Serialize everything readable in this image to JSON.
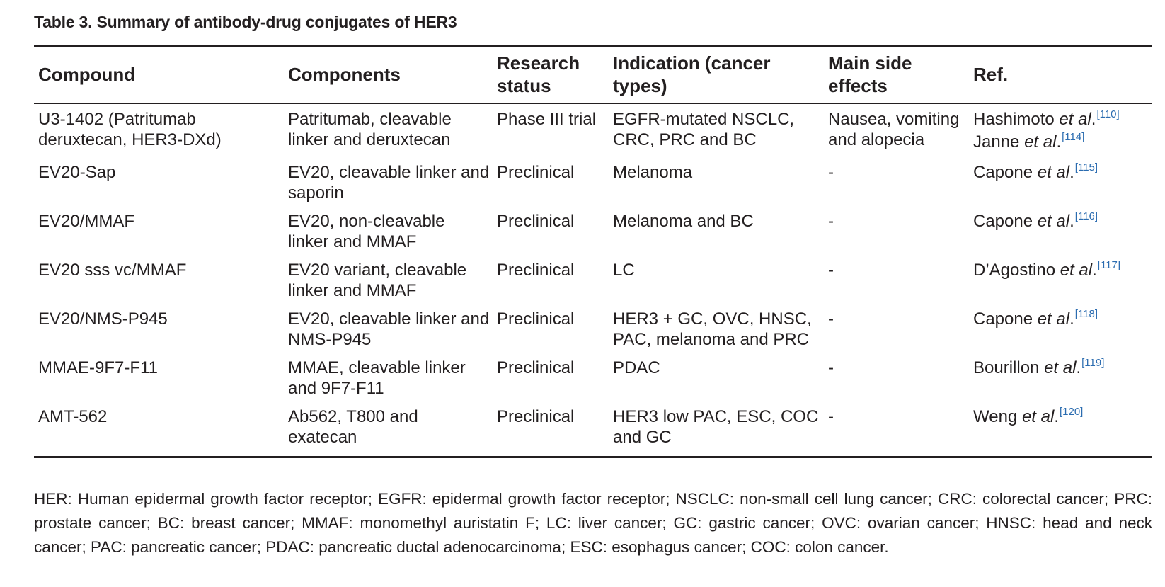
{
  "table_title": "Table 3. Summary of antibody-drug conjugates of HER3",
  "headers": {
    "compound": "Compound",
    "components": "Components",
    "research_status": "Research status",
    "indication": "Indication (cancer types)",
    "side_effects": "Main side effects",
    "ref": "Ref."
  },
  "rows": [
    {
      "compound": "U3-1402 (Patritumab deruxtecan, HER3-DXd)",
      "components": "Patritumab, cleavable linker and deruxtecan",
      "status": "Phase III trial",
      "indication": "EGFR-mutated NSCLC, CRC, PRC and BC",
      "side_effects": "Nausea, vomiting and alopecia",
      "refs": [
        {
          "author": "Hashimoto",
          "etal": "et al",
          "dot": ".",
          "cite": "[110]"
        },
        {
          "author": "Janne",
          "etal": "et al",
          "dot": ".",
          "cite": "[114]"
        }
      ]
    },
    {
      "compound": "EV20-Sap",
      "components": "EV20, cleavable linker and saporin",
      "status": "Preclinical",
      "indication": "Melanoma",
      "side_effects": "-",
      "refs": [
        {
          "author": "Capone",
          "etal": "et al",
          "dot": ".",
          "cite": "[115]"
        }
      ]
    },
    {
      "compound": "EV20/MMAF",
      "components": "EV20, non-cleavable linker and MMAF",
      "status": "Preclinical",
      "indication": "Melanoma and BC",
      "side_effects": "-",
      "refs": [
        {
          "author": "Capone",
          "etal": "et al",
          "dot": ".",
          "cite": "[116]"
        }
      ]
    },
    {
      "compound": "EV20  sss  vc/MMAF",
      "components": "EV20 variant, cleavable linker and MMAF",
      "status": "Preclinical",
      "indication": "LC",
      "side_effects": "-",
      "refs": [
        {
          "author": "D’Agostino",
          "etal": "et al",
          "dot": ".",
          "cite": "[117]"
        }
      ]
    },
    {
      "compound": "EV20/NMS-P945",
      "components": "EV20, cleavable linker and NMS-P945",
      "status": "Preclinical",
      "indication": "HER3 + GC, OVC, HNSC, PAC, melanoma and PRC",
      "side_effects": "-",
      "refs": [
        {
          "author": "Capone",
          "etal": "et al",
          "dot": ".",
          "cite": "[118]"
        }
      ]
    },
    {
      "compound": "MMAE-9F7-F11",
      "components": "MMAE, cleavable linker and 9F7-F11",
      "status": "Preclinical",
      "indication": "PDAC",
      "side_effects": "-",
      "refs": [
        {
          "author": "Bourillon",
          "etal": "et al",
          "dot": ".",
          "cite": "[119]"
        }
      ]
    },
    {
      "compound": "AMT-562",
      "components": "Ab562, T800 and exatecan",
      "status": "Preclinical",
      "indication": "HER3 low PAC, ESC, COC and GC",
      "side_effects": "-",
      "refs": [
        {
          "author": "Weng",
          "etal": "et al",
          "dot": ".",
          "cite": "[120]"
        }
      ]
    }
  ],
  "footnote": "HER: Human epidermal growth factor receptor; EGFR: epidermal growth factor receptor; NSCLC: non-small cell lung cancer; CRC: colorectal cancer; PRC: prostate cancer; BC: breast cancer; MMAF: monomethyl auristatin F; LC: liver cancer; GC: gastric cancer; OVC: ovarian cancer; HNSC: head and neck cancer; PAC: pancreatic cancer; PDAC: pancreatic ductal adenocarcinoma; ESC: esophagus cancer; COC: colon cancer.",
  "colors": {
    "text": "#231f20",
    "citation": "#2b6cb0"
  }
}
